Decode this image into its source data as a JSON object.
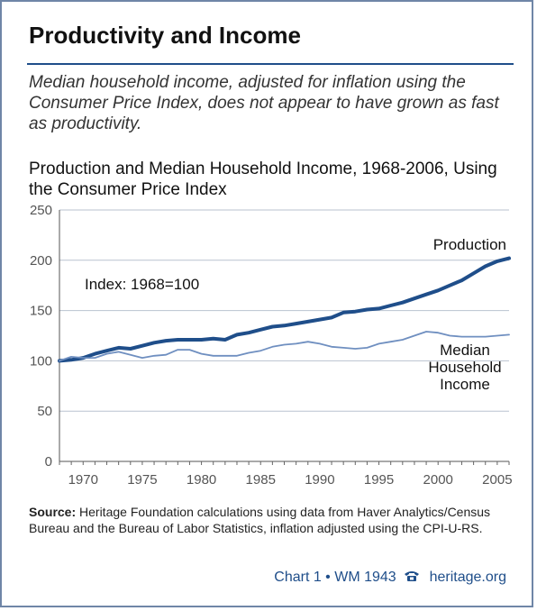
{
  "header": {
    "title": "Productivity and Income",
    "subtitle": "Median household income, adjusted for inflation using the Consumer Price Index, does not appear to have grown as fast as productivity."
  },
  "chart_data": {
    "type": "line",
    "title": "Production and Median Household Income, 1968-2006, Using the Consumer Price Index",
    "annotation": "Index: 1968=100",
    "xlim": [
      1968,
      2006
    ],
    "ylim": [
      0,
      250
    ],
    "xticks": [
      1970,
      1975,
      1980,
      1985,
      1990,
      1995,
      2000,
      2005
    ],
    "yticks": [
      0,
      50,
      100,
      150,
      200,
      250
    ],
    "grid": "horizontal",
    "x": [
      1968,
      1969,
      1970,
      1971,
      1972,
      1973,
      1974,
      1975,
      1976,
      1977,
      1978,
      1979,
      1980,
      1981,
      1982,
      1983,
      1984,
      1985,
      1986,
      1987,
      1988,
      1989,
      1990,
      1991,
      1992,
      1993,
      1994,
      1995,
      1996,
      1997,
      1998,
      1999,
      2000,
      2001,
      2002,
      2003,
      2004,
      2005,
      2006
    ],
    "series": [
      {
        "name": "Production",
        "color": "#1f4e8a",
        "values": [
          100,
          101,
          103,
          107,
          110,
          113,
          112,
          115,
          118,
          120,
          121,
          121,
          121,
          122,
          121,
          126,
          128,
          131,
          134,
          135,
          137,
          139,
          141,
          143,
          148,
          149,
          151,
          152,
          155,
          158,
          162,
          166,
          170,
          175,
          180,
          187,
          194,
          199,
          202
        ]
      },
      {
        "name": "Median Household Income",
        "color": "#6f8fc0",
        "values": [
          100,
          104,
          103,
          103,
          107,
          109,
          106,
          103,
          105,
          106,
          111,
          111,
          107,
          105,
          105,
          105,
          108,
          110,
          114,
          116,
          117,
          119,
          117,
          114,
          113,
          112,
          113,
          117,
          119,
          121,
          125,
          129,
          128,
          125,
          124,
          124,
          124,
          125,
          126
        ]
      }
    ]
  },
  "source": {
    "label": "Source:",
    "text": " Heritage Foundation calculations using data from Haver Analytics/Census Bureau and the Bureau of Labor Statistics, inflation adjusted using the CPI-U-RS."
  },
  "footer": {
    "chart_ref": "Chart 1 • WM 1943",
    "site": "heritage.org",
    "phone_icon": "telephone-icon"
  }
}
